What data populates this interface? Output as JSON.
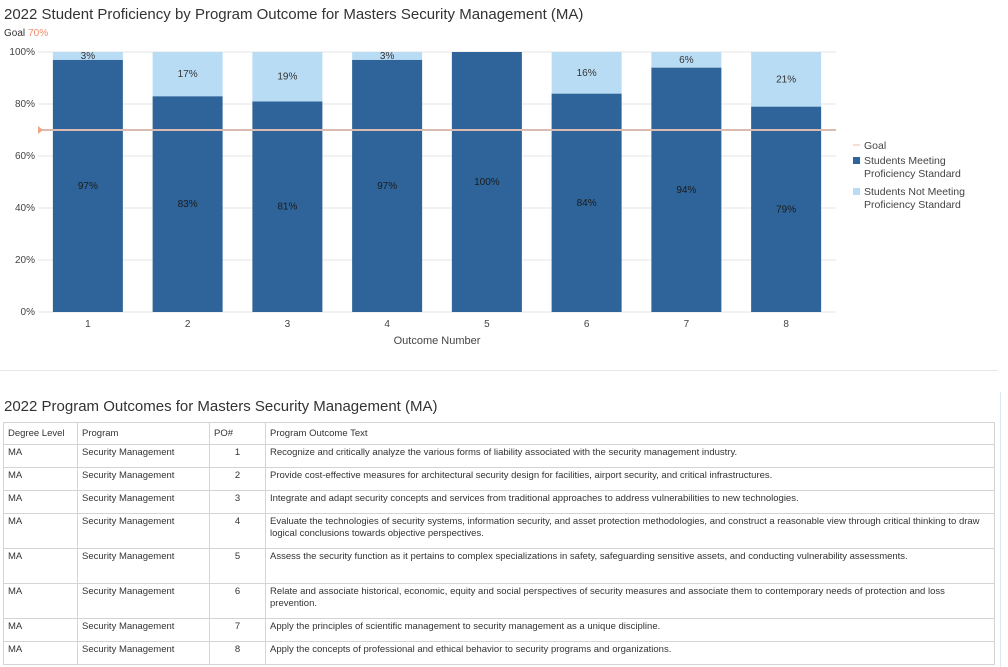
{
  "chart": {
    "title": "2022 Student Proficiency by Program Outcome for Masters Security Management (MA)",
    "goal_label": "Goal",
    "goal_value_text": "70%"
  },
  "chart_data": {
    "type": "bar",
    "stacked": true,
    "categories": [
      "1",
      "2",
      "3",
      "4",
      "5",
      "6",
      "7",
      "8"
    ],
    "series": [
      {
        "name": "Students Meeting Proficiency Standard",
        "values": [
          97,
          83,
          81,
          97,
          100,
          84,
          94,
          79
        ],
        "labels": [
          "97%",
          "83%",
          "81%",
          "97%",
          "100%",
          "84%",
          "94%",
          "79%"
        ],
        "color": "#2e6499"
      },
      {
        "name": "Students Not Meeting Proficiency Standard",
        "values": [
          3,
          17,
          19,
          3,
          0,
          16,
          6,
          21
        ],
        "labels": [
          "3%",
          "17%",
          "19%",
          "3%",
          "",
          "16%",
          "6%",
          "21%"
        ],
        "color": "#b9dcf5"
      }
    ],
    "goal": {
      "name": "Goal",
      "value": 70,
      "color": "#f5b9a8"
    },
    "xlabel": "Outcome Number",
    "ylabel": "",
    "ylim": [
      0,
      100
    ],
    "yticks": [
      "0%",
      "20%",
      "40%",
      "60%",
      "80%",
      "100%"
    ],
    "grid": true,
    "legend_position": "right"
  },
  "table": {
    "title": "2022 Program Outcomes for Masters Security Management (MA)",
    "headers": [
      "Degree Level",
      "Program",
      "PO#",
      "Program Outcome Text"
    ],
    "rows": [
      [
        "MA",
        "Security Management",
        "1",
        "Recognize and critically analyze the various forms of liability associated with the security management industry."
      ],
      [
        "MA",
        "Security Management",
        "2",
        "Provide cost-effective measures for architectural security design for facilities, airport security, and critical infrastructures."
      ],
      [
        "MA",
        "Security Management",
        "3",
        "Integrate and adapt security concepts and services from traditional approaches to address vulnerabilities to new technologies."
      ],
      [
        "MA",
        "Security Management",
        "4",
        "Evaluate the technologies of security systems, information security, and asset protection methodologies, and construct a reasonable view through critical thinking to draw logical conclusions towards objective perspectives."
      ],
      [
        "MA",
        "Security Management",
        "5",
        "Assess the security function as it pertains to complex specializations in safety, safeguarding sensitive assets, and conducting vulnerability assessments."
      ],
      [
        "MA",
        "Security Management",
        "6",
        "Relate and associate historical, economic, equity and social perspectives of security measures and associate them to contemporary needs of protection and loss prevention."
      ],
      [
        "MA",
        "Security Management",
        "7",
        "Apply the principles of scientific management to security management as a unique discipline."
      ],
      [
        "MA",
        "Security Management",
        "8",
        "Apply the concepts of professional and ethical behavior to security programs and organizations."
      ]
    ]
  }
}
